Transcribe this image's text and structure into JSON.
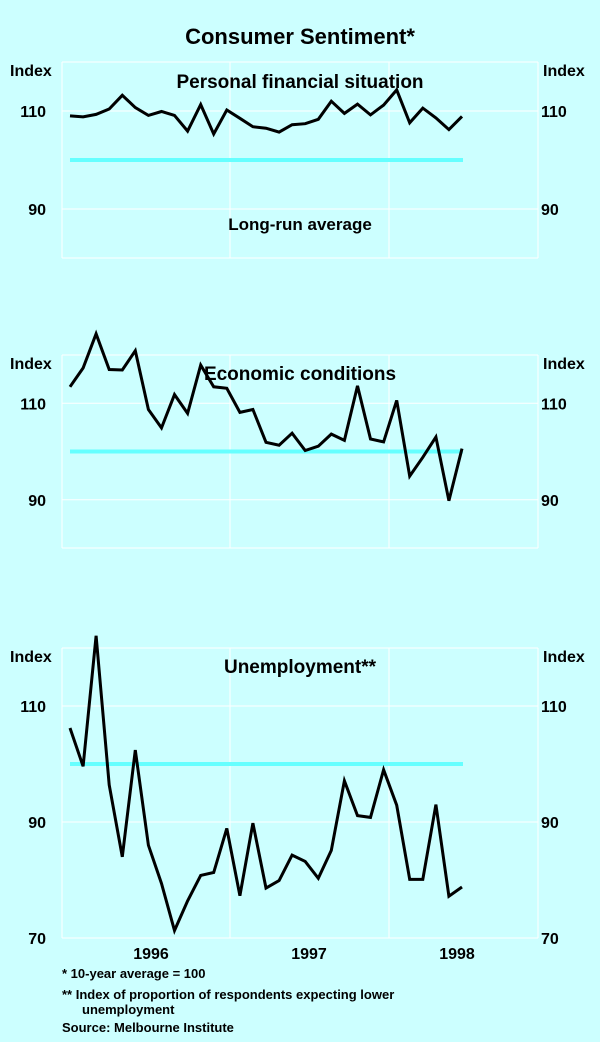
{
  "title": "Consumer Sentiment*",
  "axis_unit": "Index",
  "x_tick_labels": [
    "1996",
    "1997",
    "1998"
  ],
  "footnotes": {
    "star": "*  10-year average = 100",
    "double_star_line1": "** Index of proportion of respondents expecting lower",
    "double_star_line2": "unemployment",
    "source": "Source: Melbourne Institute"
  },
  "colors": {
    "background": "#ccffff",
    "grid": "#ffffff",
    "series": "#000000",
    "average_line": "#66ffff"
  },
  "chart_data": [
    {
      "type": "line",
      "title": "Personal financial situation",
      "ylim": [
        80,
        120
      ],
      "y_ticks": [
        90,
        110
      ],
      "grid": true,
      "reference_line": {
        "value": 100,
        "label": "Long-run average"
      },
      "series": [
        {
          "values": [
            109,
            108.8,
            109.3,
            110.4,
            113.2,
            110.7,
            109.1,
            109.9,
            109.1,
            105.9,
            111.3,
            105.3,
            110.2,
            108.5,
            106.8,
            106.5,
            105.7,
            107.2,
            107.4,
            108.3,
            112,
            109.5,
            111.4,
            109.2,
            111.2,
            114.3,
            107.6,
            110.6,
            108.6,
            106.2,
            108.9
          ]
        }
      ]
    },
    {
      "type": "line",
      "title": "Economic conditions",
      "ylim": [
        80,
        120
      ],
      "y_ticks": [
        90,
        110
      ],
      "grid": true,
      "reference_line": {
        "value": 100,
        "label": ""
      },
      "series": [
        {
          "values": [
            113.4,
            117.3,
            124.4,
            117,
            116.9,
            120.9,
            108.7,
            104.9,
            111.8,
            107.9,
            117.9,
            113.4,
            113.1,
            108.1,
            108.7,
            101.9,
            101.3,
            103.8,
            100.2,
            101.1,
            103.6,
            102.3,
            113.6,
            102.6,
            102,
            110.6,
            94.9,
            98.8,
            103,
            89.8,
            100.6
          ]
        }
      ]
    },
    {
      "type": "line",
      "title": "Unemployment**",
      "ylim": [
        70,
        120
      ],
      "y_ticks": [
        70,
        90,
        110
      ],
      "grid": true,
      "reference_line": {
        "value": 100,
        "label": ""
      },
      "series": [
        {
          "values": [
            106.2,
            99.6,
            122.1,
            96.4,
            84,
            102.4,
            86,
            79.4,
            71.3,
            76.4,
            80.8,
            81.3,
            88.9,
            77.3,
            89.8,
            78.6,
            79.9,
            84.3,
            83.2,
            80.3,
            85.1,
            97.1,
            91.1,
            90.8,
            99,
            92.9,
            80.1,
            80.1,
            93,
            77.2,
            78.8
          ]
        }
      ]
    }
  ]
}
